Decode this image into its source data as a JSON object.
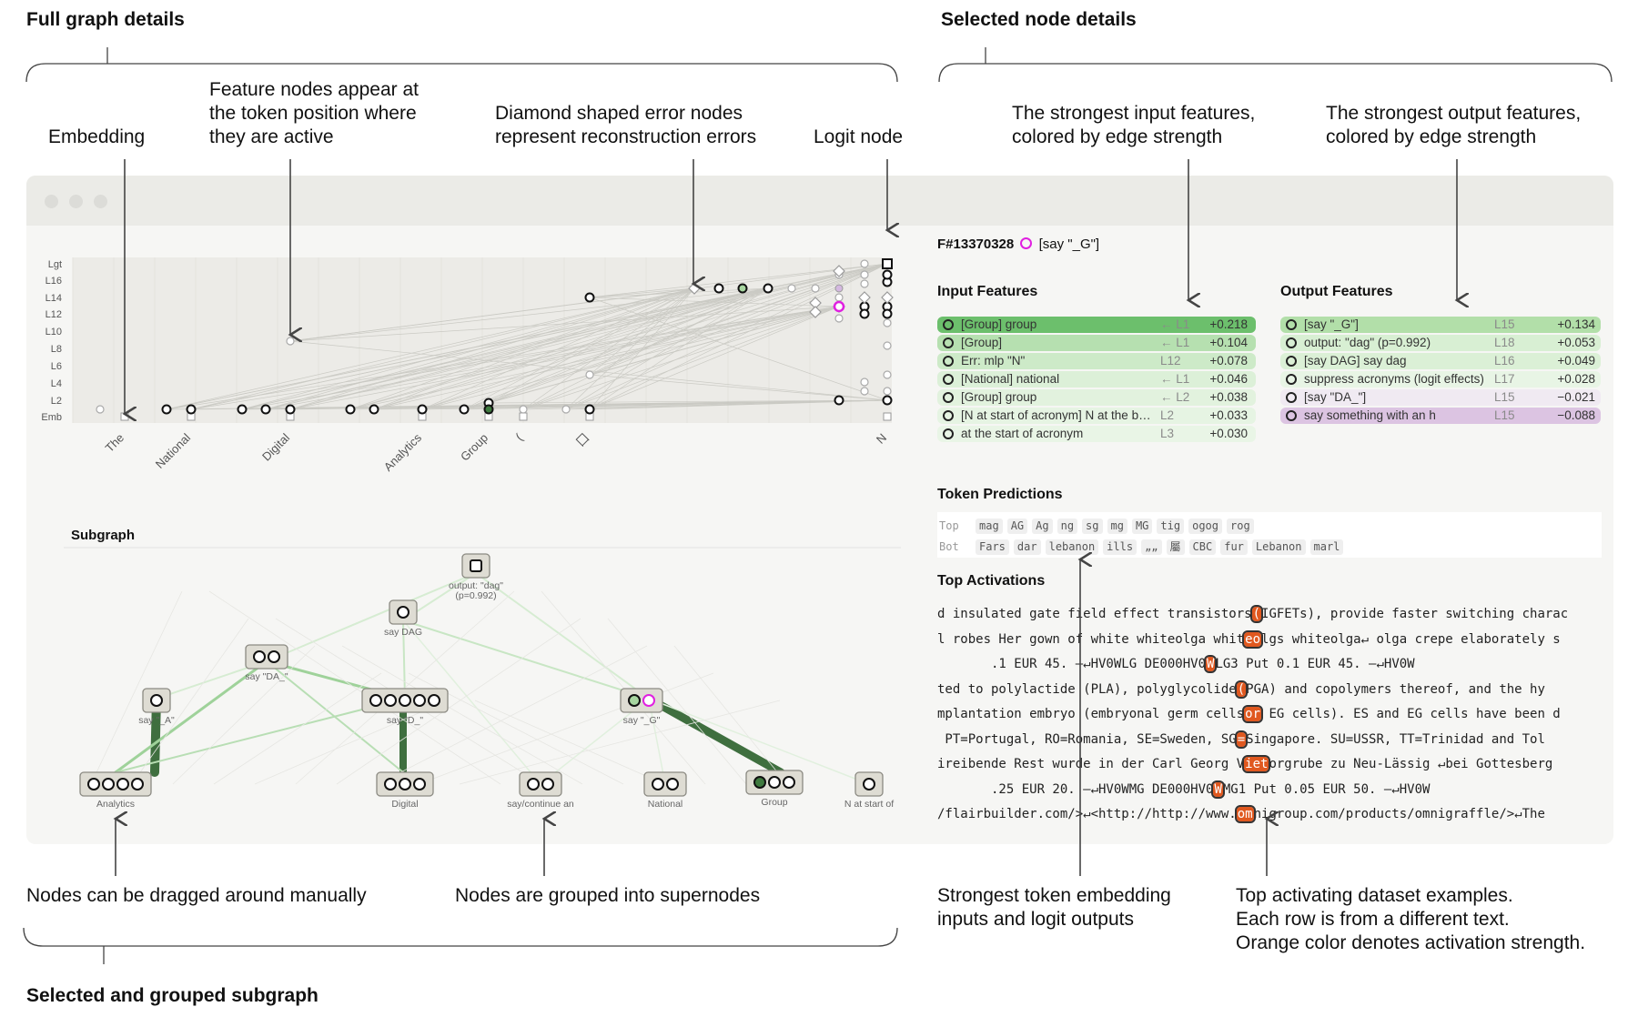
{
  "annotations": {
    "full_graph_details": "Full graph details",
    "selected_node_details": "Selected node details",
    "selected_subgraph": "Selected and grouped subgraph",
    "embedding": "Embedding",
    "feature_nodes": "Feature nodes appear at\nthe token position where\nthey are active",
    "diamond_nodes": "Diamond shaped error nodes\nrepresent reconstruction errors",
    "logit_node": "Logit node",
    "strongest_input": "The strongest input features,\ncolored by edge strength",
    "strongest_output": "The strongest output features,\ncolored by edge strength",
    "nodes_dragged": "Nodes can be dragged around manually",
    "grouped_supernodes": "Nodes are grouped into supernodes",
    "token_embedding": "Strongest token embedding\ninputs and logit outputs",
    "top_activating": "Top activating dataset examples.\nEach row is from a different text.\nOrange color denotes activation strength."
  },
  "graph": {
    "layers": [
      "Lgt",
      "L16",
      "L14",
      "L12",
      "L10",
      "L8",
      "L6",
      "L4",
      "L2",
      "Emb"
    ],
    "tokens": [
      "The",
      "National",
      "Digital",
      "Analytics",
      "Group",
      "(",
      "囗",
      "N"
    ]
  },
  "subgraph": {
    "title": "Subgraph",
    "nodes": [
      {
        "label": "output: \"dag\"\n(p=0.992)"
      },
      {
        "label": "say DAG"
      },
      {
        "label": "say \"DA_\""
      },
      {
        "label": "say \"_A\""
      },
      {
        "label": "say \"D_\""
      },
      {
        "label": "say \"_G\""
      },
      {
        "label": "Analytics"
      },
      {
        "label": "Digital"
      },
      {
        "label": "say/continue an"
      },
      {
        "label": "National"
      },
      {
        "label": "Group"
      },
      {
        "label": "N at start of"
      }
    ]
  },
  "details": {
    "feature_id": "F#13370328",
    "feature_name": "[say \"_G\"]",
    "input_title": "Input Features",
    "output_title": "Output Features",
    "input_features": [
      {
        "label": "[Group] group",
        "layer": "← L1",
        "value": "+0.218",
        "color": "#6cbf6c"
      },
      {
        "label": "[Group]",
        "layer": "← L1",
        "value": "+0.104",
        "color": "#b6e0b0"
      },
      {
        "label": "Err: mlp \"N\"",
        "layer": "L12",
        "value": "+0.078",
        "color": "#cdeac8"
      },
      {
        "label": "[National] national",
        "layer": "← L1",
        "value": "+0.046",
        "color": "#dcf0d8"
      },
      {
        "label": "[Group] group",
        "layer": "← L2",
        "value": "+0.038",
        "color": "#e2f2de"
      },
      {
        "label": "[N at start of acronym] N at the b…",
        "layer": "L2",
        "value": "+0.033",
        "color": "#e6f4e3"
      },
      {
        "label": "at the start of acronym",
        "layer": "L3",
        "value": "+0.030",
        "color": "#e9f5e6"
      }
    ],
    "output_features": [
      {
        "label": "[say \"_G\"]",
        "layer": "L15",
        "value": "+0.134",
        "color": "#b2dfa9"
      },
      {
        "label": "output: \"dag\" (p=0.992)",
        "layer": "L18",
        "value": "+0.053",
        "color": "#d8efd3"
      },
      {
        "label": "[say DAG] say dag",
        "layer": "L16",
        "value": "+0.049",
        "color": "#dbf0d6"
      },
      {
        "label": "suppress acronyms (logit effects)",
        "layer": "L17",
        "value": "+0.028",
        "color": "#e8f5e5"
      },
      {
        "label": "[say \"DA_\"]",
        "layer": "L15",
        "value": "−0.021",
        "color": "#f0eaf2"
      },
      {
        "label": "say something with an h",
        "layer": "L15",
        "value": "−0.088",
        "color": "#dcc4e2"
      }
    ],
    "token_predictions_title": "Token Predictions",
    "top_label": "Top",
    "bot_label": "Bot",
    "top_tokens": [
      "mag",
      "AG",
      "Ag",
      "ng",
      "sg",
      "mg",
      "MG",
      "tig",
      "ogog",
      "rog"
    ],
    "bot_tokens": [
      "Fars",
      "dar",
      "lebanon",
      "ills",
      "„„",
      "屬",
      "CBC",
      "fur",
      "Lebanon",
      "marl"
    ],
    "top_activations_title": "Top Activations",
    "activations": [
      {
        "pre": "d insulated gate field effect transistors",
        "hl": "(",
        "post": "IGFETs), provide faster switching charac"
      },
      {
        "pre": "l robes Her gown of white whiteolga whit",
        "hl": "eo",
        "post": "lgs whiteolga↵ olga crepe elaborately s"
      },
      {
        "pre": "       .1 EUR 45. —↵HV0WLG DE000HV0",
        "hl": "W",
        "post": "LG3 Put 0.1 EUR 45. —↵HV0W"
      },
      {
        "pre": "ted to polylactide (PLA), polyglycolide",
        "hl": "(",
        "post": "PGA) and copolymers thereof, and the hy"
      },
      {
        "pre": "mplantation embryo (embryonal germ cells",
        "hl": "or",
        "post": " EG cells). ES and EG cells have been d"
      },
      {
        "pre": " PT=Portugal, RO=Romania, SE=Sweden, SG",
        "hl": "=",
        "post": "Singapore. SU=USSR, TT=Trinidad and Tol"
      },
      {
        "pre": "ireibende Rest wurde in der Carl Georg V",
        "hl": "iet",
        "post": "orgrube zu Neu-Lässig ↵bei Gottesberg"
      },
      {
        "pre": "       .25 EUR 20. —↵HV0WMG DE000HV0",
        "hl": "W",
        "post": "MG1 Put 0.05 EUR 50. —↵HV0W"
      },
      {
        "pre": "/flairbuilder.com/>↵<http://http://www.",
        "hl": "om",
        "post": "nigroup.com/products/omnigraffle/>↵The"
      }
    ]
  },
  "colors": {
    "accent_green": "#3f7a3f",
    "highlight_orange": "#e0581f",
    "magenta": "#e020e0"
  }
}
